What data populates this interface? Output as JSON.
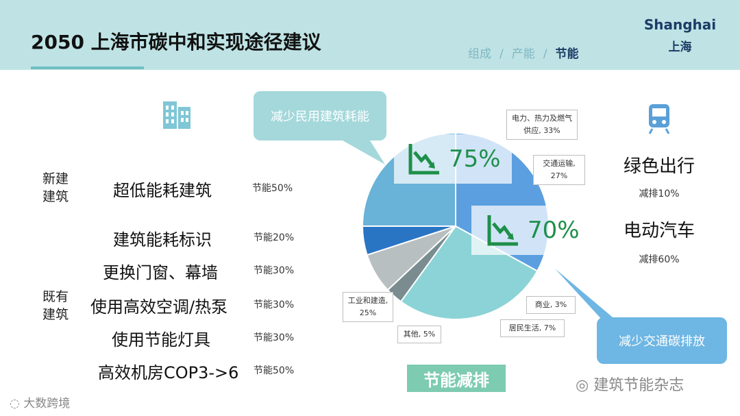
{
  "header": {
    "title": "2050 上海市碳中和实现途径建议",
    "breadcrumb": [
      "组成",
      "产能",
      "节能"
    ],
    "breadcrumb_sep": "/",
    "city_en": "Shanghai",
    "city_cn": "上海"
  },
  "left": {
    "new_building_label": "新建建筑",
    "existing_building_label": "既有建筑",
    "measures": [
      {
        "name": "超低能耗建筑",
        "saving": "节能50%"
      },
      {
        "name": "建筑能耗标识",
        "saving": "节能20%"
      },
      {
        "name": "更换门窗、幕墙",
        "saving": "节能30%"
      },
      {
        "name": "使用高效空调/热泵",
        "saving": "节能30%"
      },
      {
        "name": "使用节能灯具",
        "saving": "节能30%"
      },
      {
        "name": "高效机房COP3->6",
        "saving": "节能50%"
      }
    ]
  },
  "callouts": {
    "building": "减少民用建筑耗能",
    "transport": "减少交通碳排放"
  },
  "right": {
    "items": [
      {
        "name": "绿色出行",
        "saving": "减排10%"
      },
      {
        "name": "电动汽车",
        "saving": "减排60%"
      }
    ]
  },
  "highlights": [
    "75%",
    "70%"
  ],
  "chart_data": {
    "type": "pie",
    "title": "",
    "slices": [
      {
        "label": "电力、热力及燃气供应, 33%",
        "value": 33,
        "color": "#5b9fe0"
      },
      {
        "label": "交通运输, 27%",
        "value": 27,
        "color": "#8bd3d6"
      },
      {
        "label": "商业, 3%",
        "value": 3,
        "color": "#7a8c90"
      },
      {
        "label": "居民生活, 7%",
        "value": 7,
        "color": "#b7bfc1"
      },
      {
        "label": "其他, 5%",
        "value": 5,
        "color": "#2a74c4"
      },
      {
        "label": "工业和建造, 25%",
        "value": 25,
        "color": "#69b2d8"
      }
    ]
  },
  "badge": "节能减排",
  "watermarks": [
    "建筑节能杂志",
    "大数跨境"
  ]
}
